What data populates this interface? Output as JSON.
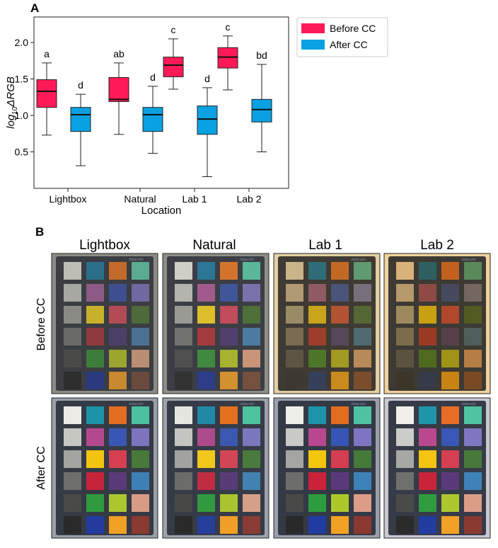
{
  "panels": {
    "a_letter": "A",
    "b_letter": "B"
  },
  "chart_data": {
    "type": "box",
    "categories": [
      "Lightbox",
      "Natural",
      "Lab 1",
      "Lab 2"
    ],
    "xlabel": "Location",
    "ylabel_prefix": "log",
    "ylabel_sub": "10",
    "ylabel_suffix": "ΔRGB",
    "ylim": [
      0.0,
      2.35
    ],
    "yticks": [
      "0.5",
      "1.0",
      "1.5",
      "2.0"
    ],
    "grid": false,
    "legend_position": "right-outside",
    "series": [
      {
        "name": "Before CC",
        "color": "#ff1a57",
        "boxes": [
          {
            "min": 0.73,
            "q1": 1.11,
            "median": 1.33,
            "q3": 1.49,
            "max": 1.72,
            "label": "a"
          },
          {
            "min": 0.74,
            "q1": 1.19,
            "median": 1.22,
            "q3": 1.52,
            "max": 1.72,
            "label": "ab"
          },
          {
            "min": 1.36,
            "q1": 1.53,
            "median": 1.69,
            "q3": 1.8,
            "max": 2.05,
            "label": "c"
          },
          {
            "min": 1.35,
            "q1": 1.65,
            "median": 1.8,
            "q3": 1.93,
            "max": 2.09,
            "label": "c"
          }
        ]
      },
      {
        "name": "After CC",
        "color": "#0aa1e3",
        "boxes": [
          {
            "min": 0.31,
            "q1": 0.78,
            "median": 1.01,
            "q3": 1.11,
            "max": 1.29,
            "label": "d"
          },
          {
            "min": 0.48,
            "q1": 0.78,
            "median": 1.01,
            "q3": 1.11,
            "max": 1.4,
            "label": "d"
          },
          {
            "min": 0.16,
            "q1": 0.74,
            "median": 0.95,
            "q3": 1.13,
            "max": 1.38,
            "label": "d"
          },
          {
            "min": 0.5,
            "q1": 0.91,
            "median": 1.08,
            "q3": 1.22,
            "max": 1.7,
            "label": "bd"
          }
        ]
      }
    ]
  },
  "photo_grid": {
    "columns": [
      "Lightbox",
      "Natural",
      "Lab 1",
      "Lab 2"
    ],
    "rows": [
      "Before CC",
      "After CC"
    ],
    "brand_label": "datacolor",
    "swatches_before": [
      [
        "#bdbdb6",
        "#2b6f8a",
        "#c26a2a",
        "#5aab92",
        "#a8a8a2",
        "#8d5a86",
        "#3e4f8f",
        "#6e6aa0",
        "#8a8a84",
        "#c7b02a",
        "#b24b56",
        "#4f6a3a",
        "#6a6a66",
        "#8f3a3c",
        "#4c3f66",
        "#4a7194",
        "#4a4a48",
        "#3d7d3a",
        "#9aa62e",
        "#b98e72",
        "#2e2e2e",
        "#2b3a7e",
        "#c9892e",
        "#6b4a3e"
      ],
      [
        "#cfcfc6",
        "#2c7696",
        "#d4742c",
        "#5cb69a",
        "#b4b4ae",
        "#a05a8c",
        "#41559a",
        "#7872ab",
        "#9a9a94",
        "#dcbf2a",
        "#c04c5c",
        "#4f6f3a",
        "#72726e",
        "#a33a40",
        "#513f6c",
        "#4b7ba0",
        "#505050",
        "#3f8a3e",
        "#a7b230",
        "#c99478",
        "#323232",
        "#2d3d88",
        "#d3902e",
        "#74503f"
      ],
      [
        "#c9b48a",
        "#2f6c78",
        "#c26a24",
        "#5e9a72",
        "#b09a74",
        "#8f5a62",
        "#4a5478",
        "#77707a",
        "#9a8a66",
        "#c9a41a",
        "#b25334",
        "#566634",
        "#7a6c52",
        "#9c3e2a",
        "#57475a",
        "#4f6a72",
        "#5c5444",
        "#4e7628",
        "#a29a22",
        "#b88a5a",
        "#3c3830",
        "#37405a",
        "#c98a1e",
        "#7a4e2c"
      ],
      [
        "#d9b27a",
        "#2f5f60",
        "#c2621e",
        "#5a8a5a",
        "#b69a6c",
        "#8f4a46",
        "#474a5e",
        "#756660",
        "#9c8a5c",
        "#c9a012",
        "#b0482c",
        "#545a22",
        "#7c6c4c",
        "#9a3a22",
        "#56404a",
        "#4f5e5a",
        "#5c5240",
        "#4e6a1e",
        "#a09418",
        "#b67e44",
        "#3c3628",
        "#373a48",
        "#c78414",
        "#7a4a22"
      ]
    ],
    "swatches_after": [
      [
        "#ecebe6",
        "#1d93a8",
        "#e36e22",
        "#4cc0a0",
        "#c7c7c2",
        "#b4488f",
        "#3a56b5",
        "#7d74c0",
        "#a4a4a0",
        "#f2c410",
        "#d43f52",
        "#47793a",
        "#6e6e6c",
        "#c5243a",
        "#5a3a7a",
        "#3e80b6",
        "#4a4a48",
        "#2f9a3e",
        "#aac82e",
        "#d99b85",
        "#2a2a2a",
        "#233b9e",
        "#f0a024",
        "#8a3a30"
      ],
      [
        "#e6e6e0",
        "#2289a4",
        "#e4711e",
        "#4ec29c",
        "#c4c4c0",
        "#ad4a8c",
        "#3b58b0",
        "#7b77bd",
        "#a2a2a0",
        "#f0c81c",
        "#d04656",
        "#4a7a3c",
        "#6c6c6a",
        "#c02c40",
        "#583c78",
        "#4182b0",
        "#484846",
        "#319a40",
        "#a8c430",
        "#d6a088",
        "#2a2a2a",
        "#263e9c",
        "#ef9e26",
        "#893c34"
      ],
      [
        "#efefea",
        "#1c94aa",
        "#e26c20",
        "#4ec3a2",
        "#c9c9c5",
        "#b8478f",
        "#3755b6",
        "#7e75c2",
        "#a5a5a2",
        "#f3c60c",
        "#d53d50",
        "#457a38",
        "#6d6d6b",
        "#c9223a",
        "#59397a",
        "#3c82b8",
        "#494947",
        "#2d9c3c",
        "#abca2a",
        "#dc9c86",
        "#292929",
        "#213ca0",
        "#f1a222",
        "#8b3830"
      ],
      [
        "#f0efea",
        "#1f95aa",
        "#e66e24",
        "#4ec4a2",
        "#cbcbc7",
        "#b9488f",
        "#3a57b7",
        "#7f77c2",
        "#a7a7a4",
        "#f3c412",
        "#d63e52",
        "#48793a",
        "#6f6f6d",
        "#c8253b",
        "#5b3a7b",
        "#3f82b8",
        "#4b4b49",
        "#2f9c3e",
        "#abc92e",
        "#dc9d87",
        "#2b2b2b",
        "#233ca0",
        "#f1a126",
        "#8b3a32"
      ]
    ],
    "bg_before": [
      "#3a3d42",
      "#3b3e44",
      "#3f3a33",
      "#3d3a34"
    ],
    "bg_after": [
      "#353a45",
      "#363b47",
      "#343946",
      "#363b47"
    ],
    "frame_before": [
      "#8c8c86",
      "#8e8e88",
      "#e2cfa3",
      "#f0d29c"
    ],
    "frame_after": [
      "#9aa0a8",
      "#9da3ab",
      "#9aa0ab",
      "#c8c8d0"
    ]
  }
}
